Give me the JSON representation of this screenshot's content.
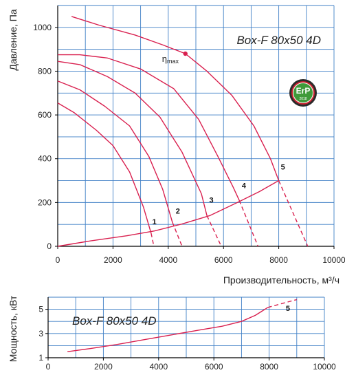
{
  "colors": {
    "grid": "#3f7fc6",
    "curve": "#d9204f",
    "axis": "#000000",
    "badge_green": "#3f9a3a",
    "badge_dark": "#2b2b2b",
    "badge_red": "#c8202e"
  },
  "badge": {
    "main": "ErP",
    "sub": "2018"
  },
  "chart_data": [
    {
      "type": "line",
      "title": "Box-F 80x50 4D",
      "xlabel": "Производительность, м³/ч",
      "ylabel": "Давление, Па",
      "xlim": [
        0,
        10000
      ],
      "ylim": [
        0,
        1100
      ],
      "x_ticks": [
        0,
        2000,
        4000,
        6000,
        8000,
        10000
      ],
      "y_ticks": [
        0,
        200,
        400,
        600,
        800,
        1000
      ],
      "grid": true,
      "annotation": {
        "label_main": "η",
        "label_sub": "max",
        "x": 4620,
        "y": 880
      },
      "series": [
        {
          "name": "1",
          "solid": [
            [
              0,
              655
            ],
            [
              600,
              610
            ],
            [
              1400,
              530
            ],
            [
              2000,
              460
            ],
            [
              2600,
              340
            ],
            [
              3100,
              180
            ],
            [
              3380,
              60
            ]
          ],
          "dashed": [
            [
              3380,
              60
            ],
            [
              3480,
              0
            ]
          ],
          "label_pos": [
            3500,
            100
          ]
        },
        {
          "name": "2",
          "solid": [
            [
              0,
              755
            ],
            [
              800,
              715
            ],
            [
              1700,
              640
            ],
            [
              2600,
              550
            ],
            [
              3300,
              410
            ],
            [
              3800,
              260
            ],
            [
              4150,
              110
            ]
          ],
          "dashed": [
            [
              4150,
              110
            ],
            [
              4500,
              0
            ]
          ],
          "label_pos": [
            4350,
            150
          ]
        },
        {
          "name": "3",
          "solid": [
            [
              0,
              845
            ],
            [
              800,
              830
            ],
            [
              1800,
              775
            ],
            [
              2800,
              700
            ],
            [
              3700,
              590
            ],
            [
              4500,
              430
            ],
            [
              5200,
              240
            ],
            [
              5400,
              140
            ]
          ],
          "dashed": [
            [
              5400,
              140
            ],
            [
              5920,
              0
            ]
          ],
          "label_pos": [
            5560,
            200
          ]
        },
        {
          "name": "4",
          "solid": [
            [
              0,
              875
            ],
            [
              800,
              875
            ],
            [
              1800,
              860
            ],
            [
              3000,
              810
            ],
            [
              4200,
              720
            ],
            [
              5100,
              580
            ],
            [
              5800,
              410
            ],
            [
              6350,
              270
            ],
            [
              6570,
              210
            ]
          ],
          "dashed": [
            [
              6570,
              210
            ],
            [
              7250,
              0
            ]
          ],
          "label_pos": [
            6740,
            265
          ]
        },
        {
          "name": "5",
          "solid": [
            [
              500,
              1050
            ],
            [
              1500,
              1010
            ],
            [
              2800,
              965
            ],
            [
              3800,
              920
            ],
            [
              4620,
              880
            ],
            [
              5400,
              800
            ],
            [
              6300,
              690
            ],
            [
              7100,
              550
            ],
            [
              7700,
              400
            ],
            [
              8000,
              300
            ]
          ],
          "dashed": [
            [
              8000,
              300
            ],
            [
              9050,
              0
            ]
          ],
          "label_pos": [
            8150,
            350
          ]
        },
        {
          "name": "",
          "solid": [
            [
              0,
              0
            ],
            [
              1200,
              25
            ],
            [
              2500,
              48
            ],
            [
              3500,
              70
            ],
            [
              4500,
              102
            ],
            [
              5500,
              140
            ],
            [
              6500,
              200
            ],
            [
              7300,
              250
            ],
            [
              8000,
              300
            ]
          ],
          "dashed": [],
          "label_pos": null
        }
      ]
    },
    {
      "type": "line",
      "title": "Box-F 80x50 4D",
      "xlabel": "",
      "ylabel": "Мощность, кВт",
      "xlim": [
        0,
        10000
      ],
      "ylim": [
        1,
        6
      ],
      "x_ticks": [
        0,
        2000,
        4000,
        6000,
        8000,
        10000
      ],
      "y_ticks": [
        1,
        3,
        5
      ],
      "grid": true,
      "series": [
        {
          "name": "5",
          "solid": [
            [
              700,
              1.5
            ],
            [
              1500,
              1.75
            ],
            [
              2500,
              2.1
            ],
            [
              3500,
              2.5
            ],
            [
              4500,
              2.9
            ],
            [
              5500,
              3.3
            ],
            [
              6300,
              3.6
            ],
            [
              7000,
              4.0
            ],
            [
              7500,
              4.5
            ],
            [
              7950,
              5.15
            ]
          ],
          "dashed": [
            [
              7950,
              5.15
            ],
            [
              8500,
              5.5
            ],
            [
              9000,
              5.8
            ]
          ],
          "label_pos": [
            8680,
            4.85
          ]
        }
      ]
    }
  ]
}
